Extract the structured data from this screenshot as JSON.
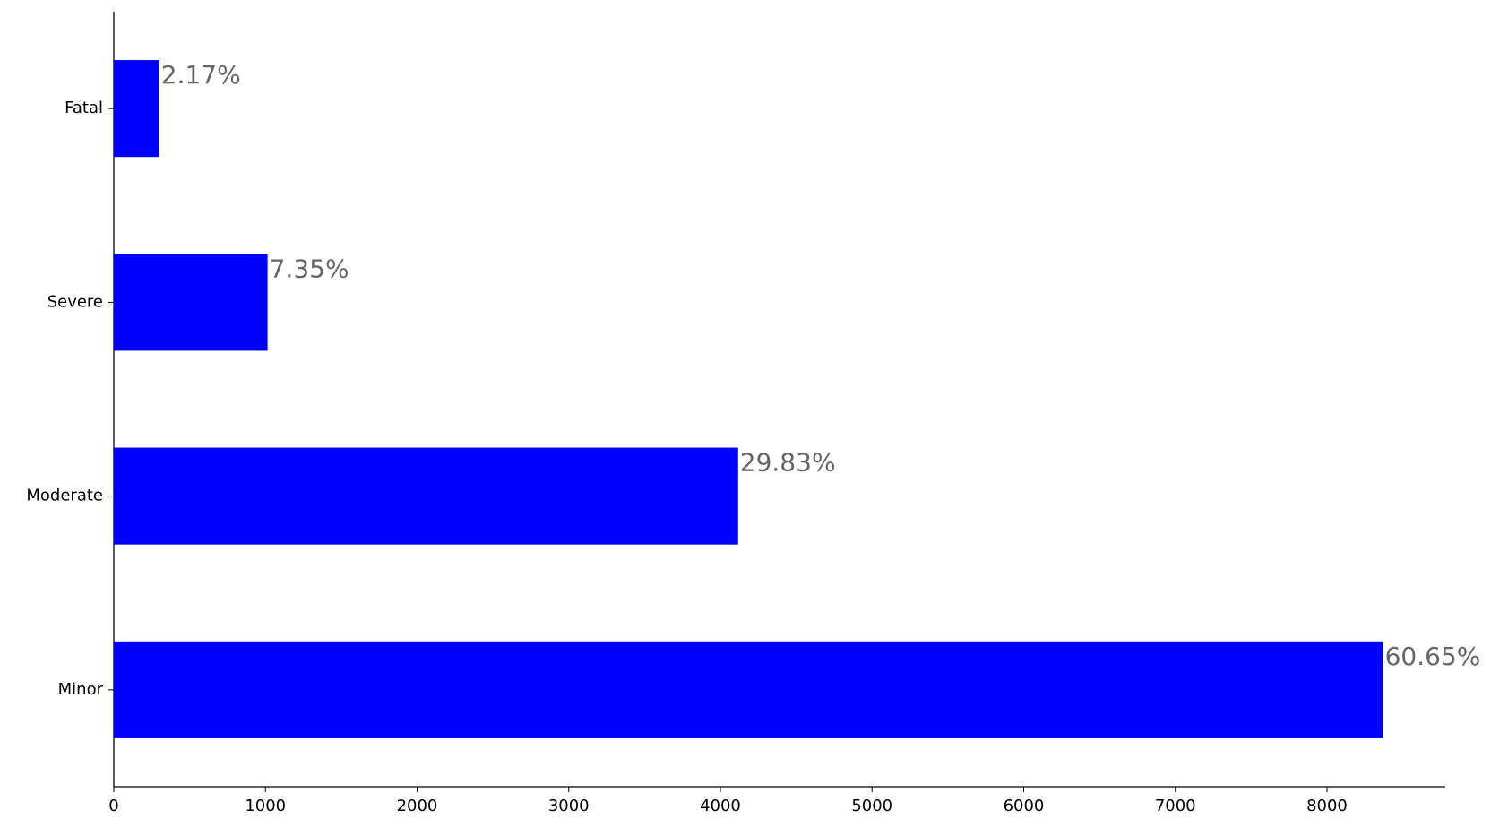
{
  "chart_data": {
    "type": "barh",
    "categories": [
      "Minor",
      "Moderate",
      "Severe",
      "Fatal"
    ],
    "values": [
      8370,
      4117,
      1014,
      300
    ],
    "percent_labels": [
      "60.65%",
      "29.83%",
      "7.35%",
      "2.17%"
    ],
    "color": "#0000ff",
    "xlim": [
      0,
      8780
    ],
    "xticks": [
      0,
      1000,
      2000,
      3000,
      4000,
      5000,
      6000,
      7000,
      8000
    ]
  }
}
